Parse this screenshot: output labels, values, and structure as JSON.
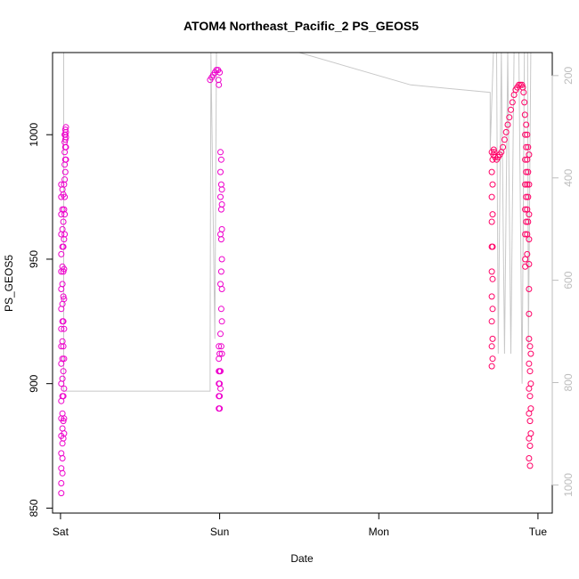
{
  "chart_data": {
    "type": "scatter",
    "title": "ATOM4 Northeast_Pacific_2 PS_GEOS5",
    "xlabel": "Date",
    "ylabel": "PS_GEOS5",
    "x_unit": "days",
    "xlim": [
      -0.05,
      3.09
    ],
    "ylim": [
      848,
      1033
    ],
    "y2lim": [
      1055,
      155
    ],
    "x_ticks": [
      {
        "value": 0,
        "label": "Sat"
      },
      {
        "value": 1,
        "label": "Sun"
      },
      {
        "value": 2,
        "label": "Mon"
      },
      {
        "value": 3,
        "label": "Tue"
      }
    ],
    "y_ticks": [
      {
        "value": 850,
        "label": "850"
      },
      {
        "value": 900,
        "label": "900"
      },
      {
        "value": 950,
        "label": "950"
      },
      {
        "value": 1000,
        "label": "1000"
      }
    ],
    "y2_ticks": [
      {
        "value": 200,
        "label": "200"
      },
      {
        "value": 400,
        "label": "400"
      },
      {
        "value": 600,
        "label": "600"
      },
      {
        "value": 800,
        "label": "800"
      },
      {
        "value": 1000,
        "label": "1000"
      }
    ],
    "colors": {
      "points_magenta": "#ee00cc",
      "points_pink": "#ff0066",
      "altitude_line": "#c8c8c8",
      "right_axis": "#bdbdbd"
    },
    "series": [
      {
        "color": "#ee00cc",
        "points": [
          [
            0.005,
            980
          ],
          [
            0.005,
            975
          ],
          [
            0.005,
            968
          ],
          [
            0.005,
            960
          ],
          [
            0.005,
            952
          ],
          [
            0.005,
            945
          ],
          [
            0.005,
            938
          ],
          [
            0.005,
            930
          ],
          [
            0.005,
            922
          ],
          [
            0.005,
            915
          ],
          [
            0.005,
            908
          ],
          [
            0.005,
            900
          ],
          [
            0.005,
            893
          ],
          [
            0.005,
            886
          ],
          [
            0.005,
            879
          ],
          [
            0.005,
            872
          ],
          [
            0.005,
            866
          ],
          [
            0.005,
            860
          ],
          [
            0.005,
            856
          ],
          [
            0.012,
            978
          ],
          [
            0.012,
            970
          ],
          [
            0.012,
            962
          ],
          [
            0.012,
            955
          ],
          [
            0.012,
            947
          ],
          [
            0.012,
            940
          ],
          [
            0.012,
            932
          ],
          [
            0.012,
            925
          ],
          [
            0.012,
            917
          ],
          [
            0.012,
            910
          ],
          [
            0.012,
            902
          ],
          [
            0.012,
            895
          ],
          [
            0.012,
            888
          ],
          [
            0.012,
            882
          ],
          [
            0.012,
            876
          ],
          [
            0.012,
            870
          ],
          [
            0.012,
            864
          ],
          [
            0.018,
            976
          ],
          [
            0.018,
            965
          ],
          [
            0.018,
            955
          ],
          [
            0.018,
            945
          ],
          [
            0.018,
            935
          ],
          [
            0.018,
            925
          ],
          [
            0.018,
            915
          ],
          [
            0.018,
            905
          ],
          [
            0.018,
            895
          ],
          [
            0.018,
            885
          ],
          [
            0.018,
            878
          ],
          [
            0.022,
            980
          ],
          [
            0.022,
            970
          ],
          [
            0.022,
            958
          ],
          [
            0.022,
            946
          ],
          [
            0.022,
            934
          ],
          [
            0.022,
            922
          ],
          [
            0.022,
            910
          ],
          [
            0.022,
            898
          ],
          [
            0.022,
            886
          ],
          [
            0.022,
            880
          ],
          [
            0.026,
            960
          ],
          [
            0.026,
            968
          ],
          [
            0.026,
            975
          ],
          [
            0.026,
            982
          ],
          [
            0.026,
            988
          ],
          [
            0.026,
            993
          ],
          [
            0.026,
            997
          ],
          [
            0.026,
            1000
          ],
          [
            0.03,
            985
          ],
          [
            0.03,
            990
          ],
          [
            0.03,
            995
          ],
          [
            0.03,
            998
          ],
          [
            0.03,
            1000
          ],
          [
            0.03,
            1002
          ],
          [
            0.034,
            990
          ],
          [
            0.034,
            995
          ],
          [
            0.034,
            999
          ],
          [
            0.034,
            1001
          ],
          [
            0.034,
            1003
          ],
          [
            0.94,
            1022
          ],
          [
            0.95,
            1023
          ],
          [
            0.96,
            1024
          ],
          [
            0.97,
            1025
          ],
          [
            0.98,
            1026
          ],
          [
            0.99,
            1026
          ],
          [
            1.0,
            1025
          ],
          [
            0.992,
            1022
          ],
          [
            0.995,
            1020
          ],
          [
            0.995,
            905
          ],
          [
            0.995,
            900
          ],
          [
            0.995,
            895
          ],
          [
            0.995,
            890
          ],
          [
            0.995,
            910
          ],
          [
            0.995,
            915
          ],
          [
            1.0,
            895
          ],
          [
            1.0,
            890
          ],
          [
            1.0,
            900
          ],
          [
            1.0,
            905
          ],
          [
            1.0,
            912
          ],
          [
            1.005,
            898
          ],
          [
            1.005,
            905
          ],
          [
            1.005,
            920
          ],
          [
            1.005,
            940
          ],
          [
            1.005,
            960
          ],
          [
            1.005,
            975
          ],
          [
            1.005,
            985
          ],
          [
            1.005,
            993
          ],
          [
            1.01,
            915
          ],
          [
            1.01,
            930
          ],
          [
            1.01,
            945
          ],
          [
            1.01,
            958
          ],
          [
            1.01,
            970
          ],
          [
            1.01,
            980
          ],
          [
            1.01,
            990
          ],
          [
            1.014,
            912
          ],
          [
            1.014,
            925
          ],
          [
            1.014,
            938
          ],
          [
            1.014,
            950
          ],
          [
            1.014,
            962
          ],
          [
            1.014,
            972
          ],
          [
            1.014,
            978
          ]
        ]
      },
      {
        "color": "#ff0066",
        "points": [
          [
            2.71,
            993
          ],
          [
            2.71,
            985
          ],
          [
            2.71,
            975
          ],
          [
            2.71,
            965
          ],
          [
            2.71,
            955
          ],
          [
            2.71,
            945
          ],
          [
            2.71,
            935
          ],
          [
            2.71,
            925
          ],
          [
            2.71,
            915
          ],
          [
            2.71,
            907
          ],
          [
            2.715,
            990
          ],
          [
            2.715,
            980
          ],
          [
            2.715,
            968
          ],
          [
            2.715,
            955
          ],
          [
            2.715,
            942
          ],
          [
            2.715,
            930
          ],
          [
            2.715,
            918
          ],
          [
            2.715,
            910
          ],
          [
            2.72,
            992
          ],
          [
            2.722,
            994
          ],
          [
            2.726,
            993
          ],
          [
            2.73,
            991
          ],
          [
            2.74,
            990
          ],
          [
            2.75,
            991
          ],
          [
            2.76,
            992
          ],
          [
            2.77,
            993
          ],
          [
            2.78,
            995
          ],
          [
            2.79,
            998
          ],
          [
            2.8,
            1001
          ],
          [
            2.81,
            1004
          ],
          [
            2.82,
            1007
          ],
          [
            2.83,
            1010
          ],
          [
            2.84,
            1013
          ],
          [
            2.85,
            1016
          ],
          [
            2.86,
            1018
          ],
          [
            2.87,
            1019
          ],
          [
            2.88,
            1020
          ],
          [
            2.89,
            1020
          ],
          [
            2.9,
            1020
          ],
          [
            2.905,
            1019
          ],
          [
            2.91,
            1017
          ],
          [
            2.915,
            1013
          ],
          [
            2.918,
            1008
          ],
          [
            2.92,
            1000
          ],
          [
            2.92,
            990
          ],
          [
            2.92,
            980
          ],
          [
            2.92,
            970
          ],
          [
            2.92,
            960
          ],
          [
            2.92,
            950
          ],
          [
            2.92,
            947
          ],
          [
            2.926,
            1004
          ],
          [
            2.926,
            995
          ],
          [
            2.926,
            985
          ],
          [
            2.926,
            975
          ],
          [
            2.926,
            965
          ],
          [
            2.932,
            1000
          ],
          [
            2.932,
            990
          ],
          [
            2.932,
            980
          ],
          [
            2.932,
            970
          ],
          [
            2.932,
            960
          ],
          [
            2.932,
            952
          ],
          [
            2.938,
            995
          ],
          [
            2.938,
            985
          ],
          [
            2.938,
            975
          ],
          [
            2.938,
            965
          ],
          [
            2.944,
            992
          ],
          [
            2.944,
            980
          ],
          [
            2.944,
            968
          ],
          [
            2.944,
            958
          ],
          [
            2.944,
            948
          ],
          [
            2.944,
            938
          ],
          [
            2.944,
            928
          ],
          [
            2.944,
            918
          ],
          [
            2.944,
            908
          ],
          [
            2.944,
            898
          ],
          [
            2.944,
            888
          ],
          [
            2.944,
            878
          ],
          [
            2.944,
            870
          ],
          [
            2.95,
            915
          ],
          [
            2.95,
            905
          ],
          [
            2.95,
            895
          ],
          [
            2.95,
            885
          ],
          [
            2.95,
            875
          ],
          [
            2.95,
            867
          ],
          [
            2.955,
            912
          ],
          [
            2.955,
            900
          ],
          [
            2.955,
            890
          ],
          [
            2.955,
            880
          ]
        ]
      }
    ],
    "altitude_line": {
      "points": [
        [
          0.02,
          1033
        ],
        [
          0.02,
          975
        ],
        [
          0.02,
          897
        ],
        [
          0.94,
          897
        ],
        [
          0.94,
          915
        ],
        [
          0.945,
          1033
        ],
        [
          0.97,
          918
        ],
        [
          0.98,
          1033
        ],
        [
          1.0,
          1033
        ],
        [
          1.5,
          1033
        ],
        [
          2.2,
          1020
        ],
        [
          2.7,
          1017
        ],
        [
          2.7,
          994
        ],
        [
          2.72,
          1033
        ],
        [
          2.74,
          1033
        ],
        [
          2.75,
          912
        ],
        [
          2.77,
          1033
        ],
        [
          2.79,
          912
        ],
        [
          2.81,
          1033
        ],
        [
          2.83,
          912
        ],
        [
          2.85,
          1033
        ],
        [
          2.88,
          1033
        ],
        [
          2.9,
          900
        ],
        [
          2.915,
          1033
        ],
        [
          2.935,
          1033
        ],
        [
          2.94,
          915
        ],
        [
          2.955,
          1033
        ]
      ]
    }
  }
}
